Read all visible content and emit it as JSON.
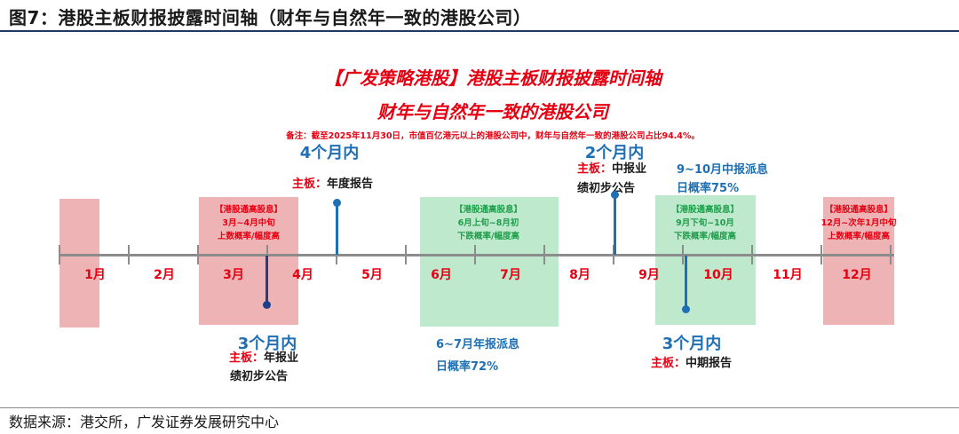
{
  "figure_title": "图7：港股主板财报披露时间轴（财年与自然年一致的港股公司）",
  "heading_line1": "【广发策略港股】港股主板财报披露时间轴",
  "heading_line2": "财年与自然年一致的港股公司",
  "note": "备注：截至2025年11月30日，市值百亿港元以上的港股公司中，财年与自然年一致的港股公司占比94.4%。",
  "months": [
    "1月",
    "2月",
    "3月",
    "4月",
    "5月",
    "6月",
    "7月",
    "8月",
    "9月",
    "10月",
    "11月",
    "12月"
  ],
  "bands": [
    {
      "color": "red",
      "lines": []
    },
    {
      "color": "red",
      "lines": [
        "【港股通高股息】",
        "3月~4月中旬",
        "上数概率/幅度高"
      ]
    },
    {
      "color": "green",
      "lines": [
        "【港股通高股息】",
        "6月上旬~8月初",
        "下跌概率/幅度高"
      ]
    },
    {
      "color": "green",
      "lines": [
        "【港股通高股息】",
        "9月下旬~10月",
        "下跌概率/幅度高"
      ]
    },
    {
      "color": "red",
      "lines": [
        "【港股通高股息】",
        "12月~次年1月中旬",
        "上数概率/幅度高"
      ]
    }
  ],
  "events": [
    {
      "window": "4个月内",
      "board_label": "主板：",
      "report_lines": [
        "年度报告"
      ]
    },
    {
      "window": "3个月内",
      "board_label": "主板：",
      "report_lines": [
        "年报业",
        "绩初步公告"
      ]
    },
    {
      "window": "2个月内",
      "board_label": "主板：",
      "report_lines": [
        "中报业",
        "绩初步公告"
      ]
    },
    {
      "window": "3个月内",
      "board_label": "主板：",
      "report_lines": [
        "中期报告"
      ]
    }
  ],
  "stats": [
    {
      "lines": [
        "9~10月中报派息",
        "日概率75%"
      ]
    },
    {
      "lines": [
        "6~7月年报派息",
        "日概率72%"
      ]
    }
  ],
  "source": "数据来源：港交所，广发证券发展研究中心"
}
